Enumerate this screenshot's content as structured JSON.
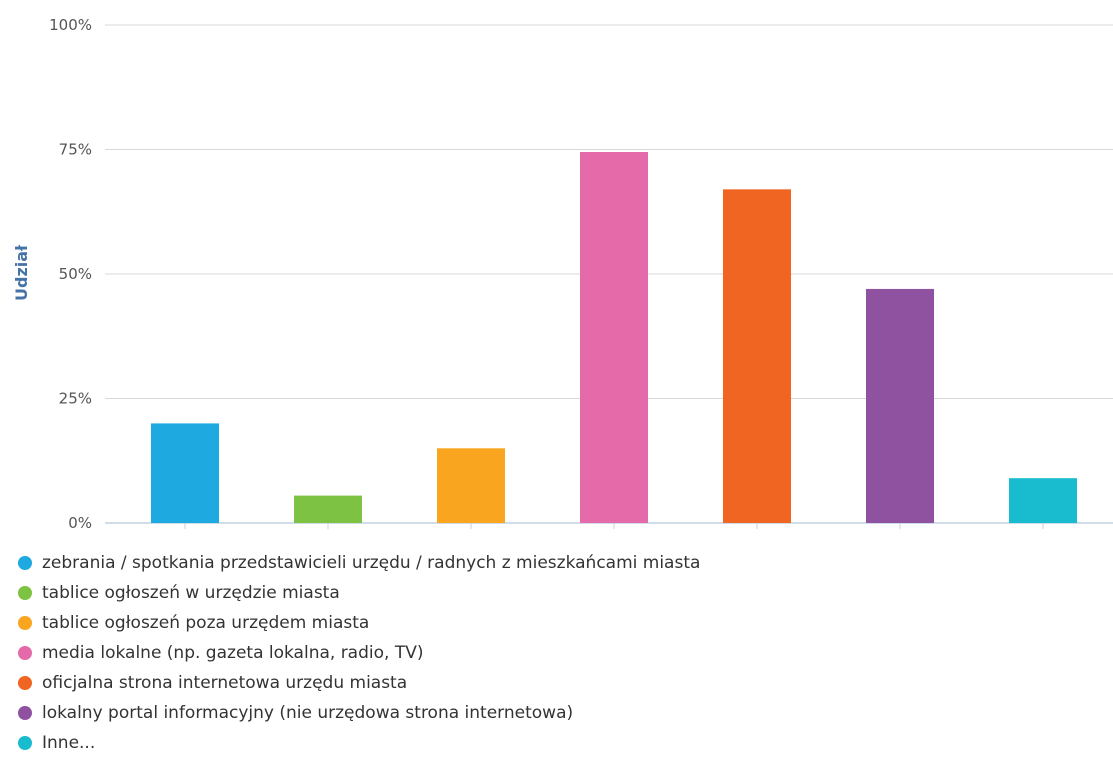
{
  "chart_data": {
    "type": "bar",
    "title": "",
    "xlabel": "",
    "ylabel": "Udział",
    "ylim": [
      0,
      100
    ],
    "y_ticks": [
      "0%",
      "25%",
      "50%",
      "75%",
      "100%"
    ],
    "y_tick_values": [
      0,
      25,
      50,
      75,
      100
    ],
    "grid": true,
    "legend_position": "bottom",
    "categories": [
      "zebrania / spotkania przedstawicieli urzędu / radnych z mieszkańcami miasta",
      "tablice ogłoszeń w urzędzie miasta",
      "tablice ogłoszeń poza urzędem miasta",
      "media lokalne (np. gazeta lokalna, radio, TV)",
      "oficjalna strona internetowa urzędu miasta",
      "lokalny portal informacyjny (nie urzędowa strona internetowa)",
      "Inne..."
    ],
    "values": [
      20,
      5.5,
      15,
      74.5,
      67,
      47,
      9
    ],
    "colors": [
      "#1ea9e1",
      "#7dc242",
      "#f9a51f",
      "#e46aaa",
      "#f16522",
      "#8e52a1",
      "#19bcce"
    ]
  }
}
